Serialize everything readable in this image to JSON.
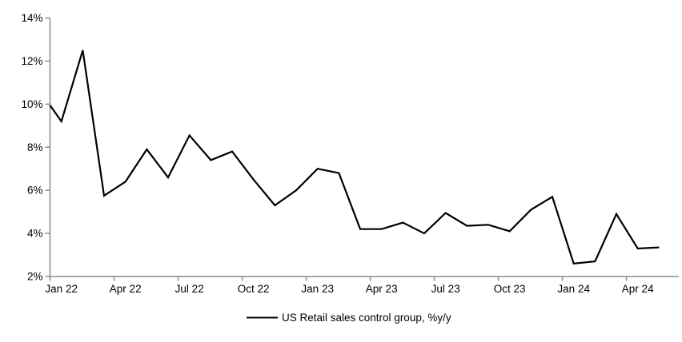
{
  "chart_data": {
    "type": "line",
    "title": "",
    "xlabel": "",
    "ylabel": "",
    "ylim": [
      2,
      14
    ],
    "grid": false,
    "legend_position": "bottom-center",
    "legend_label": "US Retail sales control group, %y/y",
    "axis_color": "#8c8c8c",
    "label_color": "#000000",
    "y_tick_values": [
      2,
      4,
      6,
      8,
      10,
      12,
      14
    ],
    "y_tick_labels": [
      "2%",
      "4%",
      "6%",
      "8%",
      "10%",
      "12%",
      "14%"
    ],
    "x_tick_labels": [
      "Jan 22",
      "Apr 22",
      "Jul 22",
      "Oct 22",
      "Jan 23",
      "Apr 23",
      "Jul 23",
      "Oct 23",
      "Jan 24",
      "Apr 24"
    ],
    "x_tick_every_months": 3,
    "series": [
      {
        "name": "US Retail sales control group, %y/y",
        "color": "#000000",
        "edge_start_value": 9.95,
        "x": [
          "Jan 22",
          "Feb 22",
          "Mar 22",
          "Apr 22",
          "May 22",
          "Jun 22",
          "Jul 22",
          "Aug 22",
          "Sep 22",
          "Oct 22",
          "Nov 22",
          "Dec 22",
          "Jan 23",
          "Feb 23",
          "Mar 23",
          "Apr 23",
          "May 23",
          "Jun 23",
          "Jul 23",
          "Aug 23",
          "Sep 23",
          "Oct 23",
          "Nov 23",
          "Dec 23",
          "Jan 24",
          "Feb 24",
          "Mar 24",
          "Apr 24",
          "May 24"
        ],
        "values": [
          9.2,
          12.5,
          5.75,
          6.4,
          7.9,
          6.6,
          8.55,
          7.4,
          7.8,
          6.5,
          5.3,
          6.0,
          7.0,
          6.8,
          4.2,
          4.2,
          4.5,
          4.0,
          4.95,
          4.35,
          4.4,
          4.1,
          5.1,
          5.7,
          2.6,
          2.7,
          4.9,
          3.3,
          3.35
        ]
      }
    ]
  }
}
